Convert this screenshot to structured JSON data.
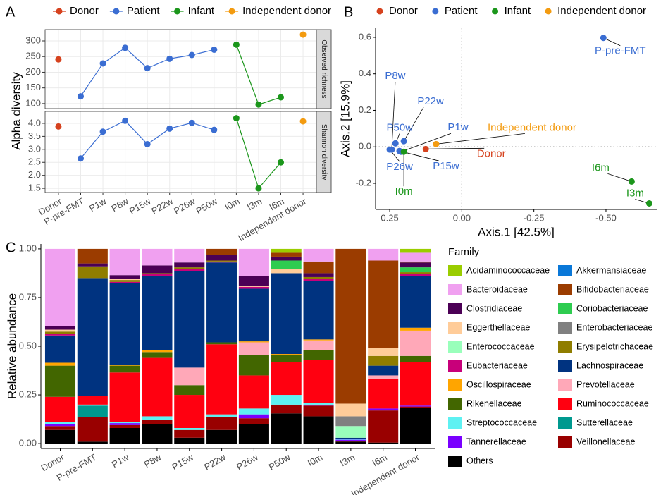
{
  "panel_labels": [
    "A",
    "B",
    "C"
  ],
  "chart_data": [
    {
      "type": "line",
      "ylabel": "Alpha diversity",
      "legend_position": "top",
      "grid": true,
      "categories": [
        "Donor",
        "P-pre-FMT",
        "P1w",
        "P8w",
        "P15w",
        "P22w",
        "P26w",
        "P50w",
        "I0m",
        "I3m",
        "I6m",
        "Independent donor"
      ],
      "series": [
        {
          "name": "Donor",
          "color": "#d6421e"
        },
        {
          "name": "Patient",
          "color": "#3a6dd2"
        },
        {
          "name": "Infant",
          "color": "#1b961b"
        },
        {
          "name": "Independent donor",
          "color": "#f39b10"
        }
      ],
      "facets": [
        {
          "strip": "Observed richness",
          "ylim": [
            84,
            336
          ],
          "yticks": [
            100,
            150,
            200,
            250,
            300
          ],
          "values": [
            [
              241,
              null,
              null,
              null,
              null,
              null,
              null,
              null,
              null,
              null,
              null,
              null
            ],
            [
              null,
              123,
              228,
              278,
              213,
              243,
              255,
              272,
              null,
              null,
              null,
              null
            ],
            [
              null,
              null,
              null,
              null,
              null,
              null,
              null,
              null,
              288,
              97,
              120,
              null
            ],
            [
              null,
              null,
              null,
              null,
              null,
              null,
              null,
              null,
              null,
              null,
              null,
              320
            ]
          ]
        },
        {
          "strip": "Shannon diversity",
          "ylim": [
            1.34,
            4.46
          ],
          "yticks": [
            1.5,
            {
              "value": 2,
              "label": "2.0"
            },
            2.5,
            {
              "value": 3,
              "label": "3.0"
            },
            3.5,
            {
              "value": 4,
              "label": "4.0"
            }
          ],
          "values": [
            [
              3.88,
              null,
              null,
              null,
              null,
              null,
              null,
              null,
              null,
              null,
              null,
              null
            ],
            [
              null,
              2.65,
              3.68,
              4.1,
              3.2,
              3.8,
              4.02,
              3.75,
              null,
              null,
              null,
              null
            ],
            [
              null,
              null,
              null,
              null,
              null,
              null,
              null,
              null,
              4.2,
              1.5,
              2.5,
              null
            ],
            [
              null,
              null,
              null,
              null,
              null,
              null,
              null,
              null,
              null,
              null,
              null,
              4.08
            ]
          ]
        }
      ]
    },
    {
      "type": "scatter",
      "xlabel": "Axis.1 [42.5%]",
      "ylabel": "Axis.2 [15.9%]",
      "legend_position": "top",
      "xlim": [
        0.299,
        -0.676
      ],
      "xticks": [
        0.25,
        {
          "value": 0,
          "label": "0.00"
        },
        -0.25,
        {
          "value": -0.5,
          "label": "-0.50"
        }
      ],
      "ylim": [
        -0.343,
        0.65
      ],
      "yticks": [
        -0.2,
        {
          "value": 0,
          "label": "0.0"
        },
        0.2,
        0.4,
        0.6
      ],
      "series": [
        {
          "name": "Donor",
          "color": "#d6421e",
          "x": [
            0.125
          ],
          "values": [
            -0.012
          ],
          "labels": [
            "Donor"
          ]
        },
        {
          "name": "Patient",
          "color": "#3a6dd2",
          "x": [
            -0.491,
            0.211,
            0.243,
            0.216,
            0.201,
            0.25,
            0.23
          ],
          "values": [
            0.597,
            -0.027,
            -0.015,
            -0.023,
            0.031,
            -0.015,
            0.019
          ],
          "labels": [
            "P-pre-FMT",
            "P1w",
            "P8w",
            "P15w",
            "P22w",
            "P26w",
            "P50w"
          ]
        },
        {
          "name": "Infant",
          "color": "#1b961b",
          "x": [
            0.201,
            -0.65,
            -0.589
          ],
          "values": [
            -0.027,
            -0.31,
            -0.19
          ],
          "labels": [
            "I0m",
            "I3m",
            "I6m"
          ]
        },
        {
          "name": "Independent donor",
          "color": "#f39b10",
          "x": [
            0.089
          ],
          "values": [
            0.015
          ],
          "labels": [
            "Independent donor"
          ]
        }
      ]
    },
    {
      "type": "bar",
      "stacked": true,
      "ylabel": "Relative abundance",
      "legend_title": "Family",
      "categories": [
        "Donor",
        "P-pre-FMT",
        "P1w",
        "P8w",
        "P15w",
        "P22w",
        "P26w",
        "P50w",
        "I0m",
        "I3m",
        "I6m",
        "Independent donor"
      ],
      "ylim": [
        -0.025,
        1.025
      ],
      "yticks": [
        {
          "value": 0,
          "label": "0.00"
        },
        0.25,
        {
          "value": 0.5,
          "label": "0.50"
        },
        0.75,
        {
          "value": 1,
          "label": "1.00"
        }
      ],
      "series": [
        {
          "name": "Acidaminococcaceae",
          "color": "#9acd00",
          "values": [
            0,
            0,
            0,
            0,
            0,
            0,
            0,
            0.02,
            0,
            0,
            0,
            0.02
          ]
        },
        {
          "name": "Akkermansiaceae",
          "color": "#0a78d8",
          "values": [
            0,
            0,
            0,
            0,
            0,
            0,
            0,
            0,
            0,
            0,
            0,
            0
          ]
        },
        {
          "name": "Bacteroidaceae",
          "color": "#f0a0f0",
          "values": [
            0.395,
            0,
            0.135,
            0.085,
            0.07,
            0,
            0.14,
            0,
            0.065,
            0,
            0.06,
            0.045
          ]
        },
        {
          "name": "Bifidobacteriaceae",
          "color": "#9b3c00",
          "values": [
            0,
            0.075,
            0,
            0,
            0,
            0.03,
            0,
            0.02,
            0.06,
            0.795,
            0.45,
            0.005
          ]
        },
        {
          "name": "Clostridiaceae",
          "color": "#4b0055",
          "values": [
            0.02,
            0.015,
            0.02,
            0.04,
            0.025,
            0.03,
            0.05,
            0.02,
            0.02,
            0,
            0,
            0.025
          ]
        },
        {
          "name": "Coriobacteriaceae",
          "color": "#2ecc50",
          "values": [
            0,
            0,
            0,
            0,
            0,
            0,
            0,
            0.045,
            0,
            0,
            0,
            0.025
          ]
        },
        {
          "name": "Eggerthellaceae",
          "color": "#ffcc99",
          "values": [
            0.01,
            0,
            0.005,
            0,
            0,
            0,
            0.005,
            0.02,
            0,
            0.065,
            0.04,
            0
          ]
        },
        {
          "name": "Enterobacteriaceae",
          "color": "#808080",
          "values": [
            0,
            0,
            0,
            0,
            0,
            0,
            0,
            0,
            0,
            0.05,
            0,
            0
          ]
        },
        {
          "name": "Enterococcaceae",
          "color": "#99ffbb",
          "values": [
            0,
            0,
            0,
            0,
            0,
            0,
            0,
            0,
            0,
            0.06,
            0,
            0
          ]
        },
        {
          "name": "Erysipelotrichaceae",
          "color": "#8f7d00",
          "values": [
            0.01,
            0.06,
            0.01,
            0.005,
            0.01,
            0.005,
            0,
            0,
            0.01,
            0,
            0.05,
            0.01
          ]
        },
        {
          "name": "Eubacteriaceae",
          "color": "#c8007a",
          "values": [
            0.01,
            0,
            0.005,
            0.01,
            0.01,
            0.005,
            0.01,
            0,
            0.01,
            0,
            0,
            0.01
          ]
        },
        {
          "name": "Lachnospiraceae",
          "color": "#003380",
          "values": [
            0.14,
            0.605,
            0.42,
            0.38,
            0.495,
            0.41,
            0.27,
            0.415,
            0.3,
            0.005,
            0.05,
            0.265
          ]
        },
        {
          "name": "Oscillospiraceae",
          "color": "#ffa500",
          "values": [
            0.015,
            0,
            0.005,
            0.01,
            0,
            0,
            0.005,
            0.005,
            0.005,
            0,
            0,
            0.015
          ]
        },
        {
          "name": "Prevotellaceae",
          "color": "#ffa8b8",
          "values": [
            0,
            0,
            0,
            0,
            0.09,
            0,
            0.065,
            0,
            0.05,
            0,
            0.02,
            0.13
          ]
        },
        {
          "name": "Rikenellaceae",
          "color": "#426600",
          "values": [
            0.16,
            0,
            0.035,
            0.03,
            0.05,
            0.01,
            0.105,
            0.035,
            0.05,
            0,
            0,
            0.03
          ]
        },
        {
          "name": "Ruminococcaceae",
          "color": "#ff0010",
          "values": [
            0.13,
            0.045,
            0.255,
            0.3,
            0.17,
            0.36,
            0.17,
            0.17,
            0.22,
            0,
            0.15,
            0.225
          ]
        },
        {
          "name": "Streptococcaceae",
          "color": "#5ef1f2",
          "values": [
            0.01,
            0.005,
            0.005,
            0.02,
            0.01,
            0.015,
            0.03,
            0.05,
            0.01,
            0.005,
            0,
            0
          ]
        },
        {
          "name": "Sutterellaceae",
          "color": "#00998f",
          "values": [
            0,
            0.06,
            0,
            0,
            0,
            0,
            0,
            0,
            0,
            0,
            0,
            0
          ]
        },
        {
          "name": "Tannerellaceae",
          "color": "#7a00ff",
          "values": [
            0.01,
            0,
            0.01,
            0,
            0,
            0,
            0.02,
            0,
            0.005,
            0.005,
            0.01,
            0.005
          ]
        },
        {
          "name": "Veillonellaceae",
          "color": "#990000",
          "values": [
            0.02,
            0.125,
            0.015,
            0.02,
            0.04,
            0.065,
            0.03,
            0.045,
            0.055,
            0.005,
            0.165,
            0.005
          ]
        },
        {
          "name": "Others",
          "color": "#000000",
          "values": [
            0.07,
            0.01,
            0.08,
            0.1,
            0.03,
            0.07,
            0.1,
            0.155,
            0.14,
            0.01,
            0.005,
            0.185
          ]
        }
      ]
    }
  ]
}
